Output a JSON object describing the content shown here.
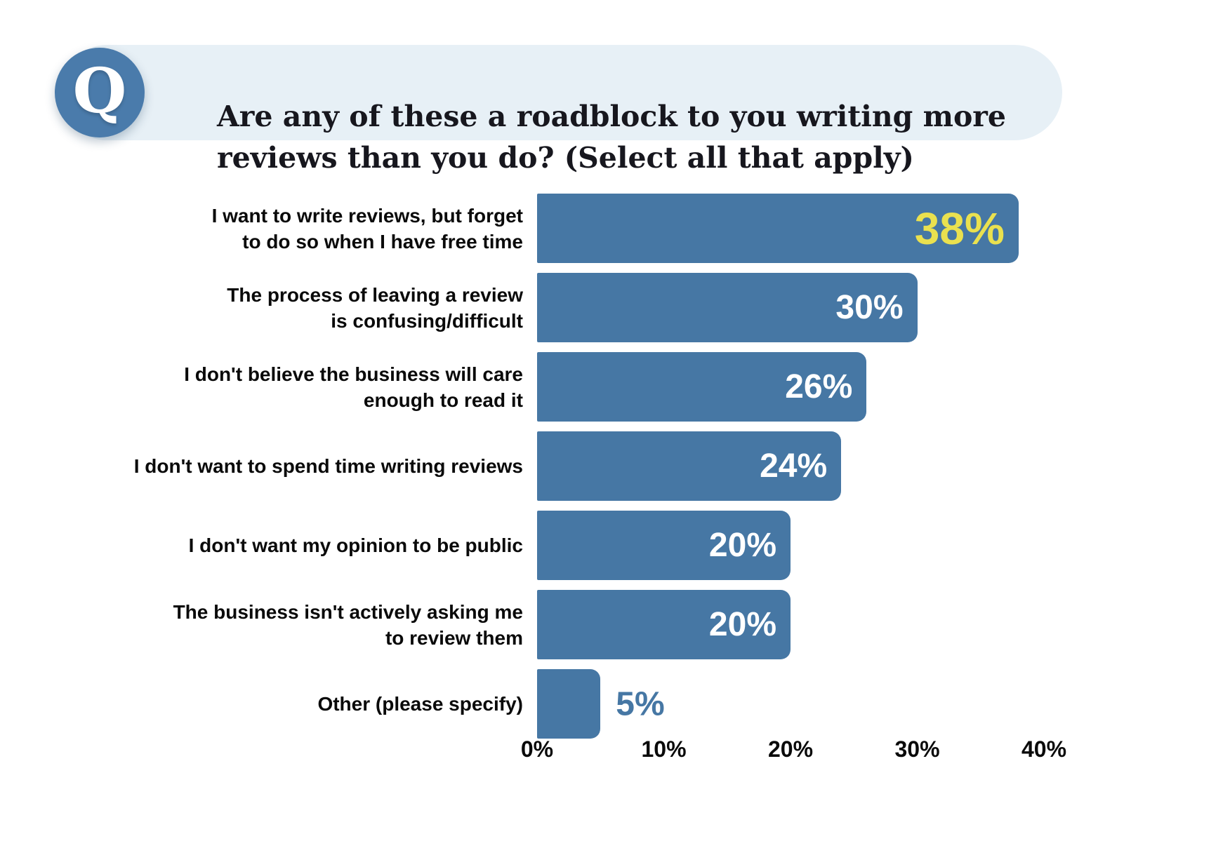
{
  "header": {
    "icon_letter": "Q",
    "title": "Are any of these a roadblock to you writing more reviews than you do? (Select all that apply)",
    "title_lines": [
      "Are any of these a roadblock to you writing more",
      "reviews than you do? (Select all that apply)"
    ]
  },
  "chart_data": {
    "type": "bar",
    "orientation": "horizontal",
    "title": "Are any of these a roadblock to you writing more reviews than you do? (Select all that apply)",
    "categories": [
      "I want to write reviews, but forget to do so when I have free time",
      "The process of leaving a review is confusing/difficult",
      "I don't believe the business will care enough to read it",
      "I don't want to spend time writing reviews",
      "I don't want my opinion to be public",
      "The business isn't actively asking me to review them",
      "Other (please specify)"
    ],
    "category_lines": [
      [
        "I want to write reviews, but forget",
        "to do so when I have free time"
      ],
      [
        "The process of leaving a review",
        "is confusing/difficult"
      ],
      [
        "I don't believe the business will care",
        "enough to read it"
      ],
      [
        "I don't want to spend time writing reviews"
      ],
      [
        "I don't want my opinion to be public"
      ],
      [
        "The business isn't actively asking me",
        "to review them"
      ],
      [
        "Other (please specify)"
      ]
    ],
    "values": [
      38,
      30,
      26,
      24,
      20,
      20,
      5
    ],
    "value_labels": [
      "38%",
      "30%",
      "26%",
      "24%",
      "20%",
      "20%",
      "5%"
    ],
    "highlight_index": 0,
    "xlabel": "",
    "ylabel": "",
    "xlim": [
      0,
      40
    ],
    "x_ticks": [
      "0%",
      "10%",
      "20%",
      "30%",
      "40%"
    ],
    "grid": false,
    "legend": false,
    "value_label_position": "inside-end, outside for smallest bar"
  },
  "colors": {
    "bar": "#4677A4",
    "value_inside": "#FFFFFF",
    "value_highlight": "#EAE14F",
    "value_outside": "#4677A4",
    "pill_background": "#E7F0F6",
    "icon_circle": "#4A7BAB",
    "icon_letter": "#FFFFFF",
    "text": "#0A0A0A"
  }
}
